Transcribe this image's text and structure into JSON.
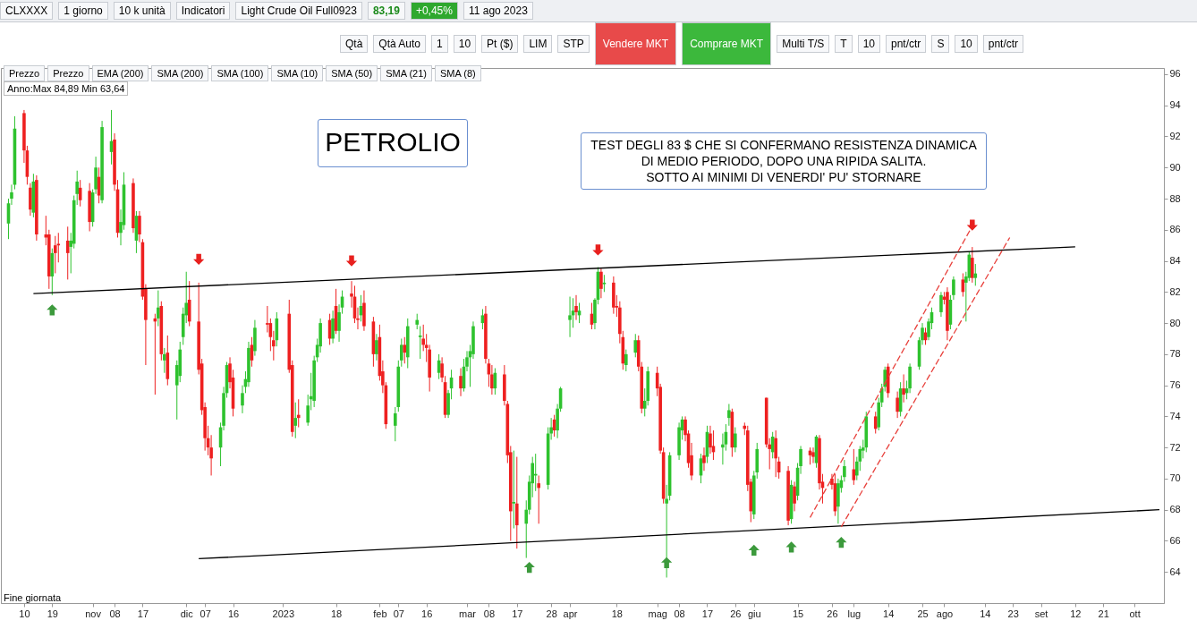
{
  "chart_data": {
    "type": "candlestick",
    "title": "PETROLIO",
    "annotations": [
      "TEST DEGLI 83 $ CHE SI CONFERMANO RESISTENZA DINAMICA\nDI MEDIO PERIODO, DOPO UNA RIPIDA SALITA.\nSOTTO AI MINIMI DI VENERDI' PU' STORNARE",
      "Anno:Max 84,89 Min 63,64",
      "Fine giornata",
      "CLXXXX",
      "1 giorno",
      "10 k unità",
      "Indicatori",
      "Light Crude Oil Full0923",
      "83,19",
      "+0,45%",
      "11 ago 2023",
      "Qtà",
      "Qtà Auto",
      "1",
      "10",
      "Pt ($)",
      "LIM",
      "STP",
      "Vendere MKT",
      "Comprare MKT",
      "Multi T/S",
      "T",
      "10",
      "pnt/ctr",
      "S",
      "10",
      "pnt/ctr",
      "Prezzo",
      "Prezzo",
      "EMA (200)",
      "SMA (200)",
      "SMA (100)",
      "SMA (10)",
      "SMA (50)",
      "SMA (21)",
      "SMA (8)"
    ],
    "colors": [
      "#2ec22e",
      "#2ec22e",
      "#2ec22e",
      "#ee2020",
      "#ee2020",
      "#ee2020",
      "#2ec22e",
      "#ee2020",
      "#ee2020",
      "#ee2020",
      "#2ec22e",
      "#ee2020",
      "#ee2020",
      "#ee2020",
      "#2ec22e",
      "#2ec22e",
      "#2ec22e",
      "#ee2020",
      "#ee2020",
      "#2ec22e",
      "#2ec22e",
      "#ee2020",
      "#2ec22e",
      "#2ec22e",
      "#ee2020",
      "#ee2020",
      "#2ec22e",
      "#2ec22e",
      "#ee2020",
      "#2ec22e",
      "#ee2020",
      "#ee2020",
      "#ee2020",
      "#ee2020",
      "#2ec22e",
      "#ee2020",
      "#2ec22e",
      "#ee2020",
      "#2ec22e",
      "#2ec22e",
      "#2ec22e",
      "#2ec22e",
      "#ee2020",
      "#ee2020",
      "#ee2020",
      "#ee2020",
      "#ee2020",
      "#ee2020",
      "#2ec22e",
      "#2ec22e",
      "#2ec22e",
      "#ee2020",
      "#ee2020",
      "#2ec22e",
      "#2ec22e",
      "#2ec22e",
      "#ee2020",
      "#2ec22e",
      "#ee2020",
      "#ee2020",
      "#ee2020",
      "#2ec22e",
      "#ee2020",
      "#ee2020",
      "#2ec22e",
      "#ee2020",
      "#2ec22e",
      "#2ec22e",
      "#2ec22e",
      "#2ec22e",
      "#2ec22e",
      "#ee2020",
      "#2ec22e",
      "#ee2020",
      "#2ec22e",
      "#2ec22e",
      "#ee2020",
      "#ee2020",
      "#ee2020",
      "#2ec22e",
      "#ee2020",
      "#ee2020",
      "#2ec22e",
      "#ee2020",
      "#ee2020",
      "#ee2020",
      "#2ec22e",
      "#2ec22e",
      "#2ec22e",
      "#ee2020",
      "#2ec22e",
      "#2ec22e",
      "#2ec22e",
      "#ee2020",
      "#ee2020",
      "#ee2020",
      "#2ec22e",
      "#ee2020",
      "#ee2020",
      "#2ec22e",
      "#2ec22e",
      "#ee2020",
      "#2ec22e",
      "#2ec22e",
      "#2ec22e",
      "#2ec22e",
      "#2ec22e",
      "#ee2020",
      "#ee2020",
      "#ee2020",
      "#2ec22e",
      "#ee2020",
      "#ee2020",
      "#ee2020",
      "#2ec22e",
      "#ee2020",
      "#2ec22e",
      "#2ec22e",
      "#2ec22e",
      "#2ec22e",
      "#ee2020",
      "#2ec22e",
      "#2ec22e",
      "#ee2020",
      "#2ec22e",
      "#2ec22e",
      "#2ec22e",
      "#2ec22e",
      "#ee2020",
      "#2ec22e",
      "#ee2020",
      "#2ec22e",
      "#2ec22e",
      "#ee2020",
      "#2ec22e",
      "#ee2020",
      "#ee2020",
      "#ee2020",
      "#ee2020",
      "#2ec22e",
      "#2ec22e",
      "#ee2020",
      "#ee2020",
      "#2ec22e",
      "#2ec22e",
      "#ee2020",
      "#ee2020",
      "#ee2020",
      "#2ec22e",
      "#2ec22e",
      "#2ec22e",
      "#2ec22e",
      "#ee2020",
      "#ee2020",
      "#ee2020",
      "#2ec22e",
      "#ee2020",
      "#2ec22e",
      "#ee2020",
      "#ee2020",
      "#2ec22e",
      "#2ec22e",
      "#2ec22e",
      "#ee2020",
      "#2ec22e",
      "#ee2020",
      "#ee2020",
      "#ee2020",
      "#2ec22e",
      "#2ec22e",
      "#ee2020",
      "#ee2020",
      "#2ec22e",
      "#ee2020",
      "#ee2020",
      "#ee2020",
      "#2ec22e",
      "#ee2020",
      "#2ec22e",
      "#2ec22e",
      "#ee2020",
      "#ee2020",
      "#2ec22e",
      "#ee2020",
      "#ee2020",
      "#ee2020",
      "#ee2020",
      "#2ec22e",
      "#2ec22e",
      "#2ec22e",
      "#ee2020",
      "#2ec22e",
      "#2ec22e",
      "#2ec22e",
      "#2ec22e",
      "#ee2020",
      "#2ec22e",
      "#2ec22e",
      "#2ec22e",
      "#ee2020",
      "#ee2020",
      "#2ec22e",
      "#ee2020",
      "#2ec22e",
      "#2ec22e",
      "#2ec22e",
      "#2ec22e",
      "#ee2020",
      "#2ec22e",
      "#2ec22e",
      "#2ec22e",
      "#ee2020",
      "#ee2020",
      "#2ec22e",
      "#2ec22e",
      "#ee2020",
      "#2ec22e",
      "#2ec22e",
      "#ee2020",
      "#2ec22e"
    ],
    "x": [
      "2022-10-05",
      "2022-10-06",
      "2022-10-07",
      "2022-10-10",
      "2022-10-11",
      "2022-10-12",
      "2022-10-13",
      "2022-10-14",
      "2022-10-17",
      "2022-10-18",
      "2022-10-19",
      "2022-10-20",
      "2022-10-21",
      "2022-10-24",
      "2022-10-25",
      "2022-10-26",
      "2022-10-27",
      "2022-10-28",
      "2022-10-31",
      "2022-11-01",
      "2022-11-02",
      "2022-11-03",
      "2022-11-04",
      "2022-11-07",
      "2022-11-08",
      "2022-11-09",
      "2022-11-10",
      "2022-11-11",
      "2022-11-14",
      "2022-11-15",
      "2022-11-16",
      "2022-11-17",
      "2022-11-18",
      "2022-11-21",
      "2022-11-22",
      "2022-11-23",
      "2022-11-24",
      "2022-11-25",
      "2022-11-28",
      "2022-11-29",
      "2022-11-30",
      "2022-12-01",
      "2022-12-02",
      "2022-12-05",
      "2022-12-06",
      "2022-12-07",
      "2022-12-08",
      "2022-12-09",
      "2022-12-12",
      "2022-12-13",
      "2022-12-14",
      "2022-12-15",
      "2022-12-16",
      "2022-12-19",
      "2022-12-20",
      "2022-12-21",
      "2022-12-22",
      "2022-12-23",
      "2022-12-27",
      "2022-12-28",
      "2022-12-29",
      "2022-12-30",
      "2023-01-03",
      "2023-01-04",
      "2023-01-05",
      "2023-01-06",
      "2023-01-09",
      "2023-01-10",
      "2023-01-11",
      "2023-01-12",
      "2023-01-13",
      "2023-01-16",
      "2023-01-17",
      "2023-01-18",
      "2023-01-19",
      "2023-01-20",
      "2023-01-23",
      "2023-01-24",
      "2023-01-25",
      "2023-01-26",
      "2023-01-27",
      "2023-01-30",
      "2023-01-31",
      "2023-02-01",
      "2023-02-02",
      "2023-02-03",
      "2023-02-06",
      "2023-02-07",
      "2023-02-08",
      "2023-02-09",
      "2023-02-10",
      "2023-02-13",
      "2023-02-14",
      "2023-02-15",
      "2023-02-16",
      "2023-02-17",
      "2023-02-20",
      "2023-02-21",
      "2023-02-22",
      "2023-02-23",
      "2023-02-24",
      "2023-02-27",
      "2023-02-28",
      "2023-03-01",
      "2023-03-02",
      "2023-03-03",
      "2023-03-06",
      "2023-03-07",
      "2023-03-08",
      "2023-03-09",
      "2023-03-10",
      "2023-03-13",
      "2023-03-14",
      "2023-03-15",
      "2023-03-16",
      "2023-03-17",
      "2023-03-20",
      "2023-03-21",
      "2023-03-22",
      "2023-03-23",
      "2023-03-24",
      "2023-03-27",
      "2023-03-28",
      "2023-03-29",
      "2023-03-30",
      "2023-03-31",
      "2023-04-03",
      "2023-04-04",
      "2023-04-05",
      "2023-04-06",
      "2023-04-10",
      "2023-04-11",
      "2023-04-12",
      "2023-04-13",
      "2023-04-14",
      "2023-04-17",
      "2023-04-18",
      "2023-04-19",
      "2023-04-20",
      "2023-04-21",
      "2023-04-24",
      "2023-04-25",
      "2023-04-26",
      "2023-04-27",
      "2023-04-28",
      "2023-05-01",
      "2023-05-02",
      "2023-05-03",
      "2023-05-04",
      "2023-05-05",
      "2023-05-08",
      "2023-05-09",
      "2023-05-10",
      "2023-05-11",
      "2023-05-12",
      "2023-05-15",
      "2023-05-16",
      "2023-05-17",
      "2023-05-18",
      "2023-05-19",
      "2023-05-22",
      "2023-05-23",
      "2023-05-24",
      "2023-05-25",
      "2023-05-26",
      "2023-05-29",
      "2023-05-30",
      "2023-05-31",
      "2023-06-01",
      "2023-06-02",
      "2023-06-05",
      "2023-06-06",
      "2023-06-07",
      "2023-06-08",
      "2023-06-09",
      "2023-06-12",
      "2023-06-13",
      "2023-06-14",
      "2023-06-15",
      "2023-06-16",
      "2023-06-19",
      "2023-06-20",
      "2023-06-21",
      "2023-06-22",
      "2023-06-23",
      "2023-06-26",
      "2023-06-27",
      "2023-06-28",
      "2023-06-29",
      "2023-06-30",
      "2023-07-03",
      "2023-07-04",
      "2023-07-05",
      "2023-07-06",
      "2023-07-07",
      "2023-07-10",
      "2023-07-11",
      "2023-07-12",
      "2023-07-13",
      "2023-07-14",
      "2023-07-17",
      "2023-07-18",
      "2023-07-19",
      "2023-07-20",
      "2023-07-21",
      "2023-07-24",
      "2023-07-25",
      "2023-07-26",
      "2023-07-27",
      "2023-07-28",
      "2023-07-31",
      "2023-08-01",
      "2023-08-02",
      "2023-08-03",
      "2023-08-04",
      "2023-08-07",
      "2023-08-08",
      "2023-08-09",
      "2023-08-10",
      "2023-08-11"
    ],
    "ohlc": [
      [
        86.4,
        88.0,
        85.4,
        87.7
      ],
      [
        88.0,
        88.9,
        87.6,
        88.4
      ],
      [
        88.9,
        93.3,
        88.6,
        92.5
      ],
      [
        93.5,
        93.7,
        90.3,
        91.1
      ],
      [
        91.1,
        91.4,
        88.9,
        89.4
      ],
      [
        88.7,
        89.0,
        86.9,
        87.3
      ],
      [
        87.1,
        89.6,
        86.8,
        89.1
      ],
      [
        89.2,
        89.5,
        85.3,
        85.7
      ],
      [
        85.7,
        86.9,
        85.0,
        85.5
      ],
      [
        85.7,
        86.0,
        82.2,
        83.0
      ],
      [
        83.0,
        84.8,
        81.8,
        84.5
      ],
      [
        85.0,
        85.6,
        83.2,
        84.5
      ],
      [
        85.1,
        85.8,
        83.9,
        85.0
      ],
      [
        85.3,
        86.2,
        82.8,
        84.5
      ],
      [
        84.9,
        85.8,
        83.2,
        85.3
      ],
      [
        85.1,
        88.2,
        84.8,
        87.9
      ],
      [
        88.3,
        89.8,
        87.6,
        89.1
      ],
      [
        88.7,
        89.2,
        87.5,
        87.9
      ],
      [
        88.5,
        89.0,
        85.9,
        86.5
      ],
      [
        86.5,
        88.6,
        86.2,
        88.4
      ],
      [
        88.6,
        90.7,
        88.3,
        90.0
      ],
      [
        89.4,
        90.0,
        87.7,
        88.2
      ],
      [
        87.9,
        93.0,
        87.7,
        92.6
      ],
      [
        91.0,
        93.7,
        90.2,
        91.7
      ],
      [
        91.8,
        92.2,
        88.5,
        88.9
      ],
      [
        88.6,
        89.2,
        85.5,
        85.8
      ],
      [
        85.8,
        87.3,
        85.0,
        86.5
      ],
      [
        86.3,
        89.7,
        86.0,
        88.9
      ],
      [
        89.0,
        89.3,
        85.8,
        86.1
      ],
      [
        85.3,
        87.2,
        84.5,
        86.9
      ],
      [
        86.9,
        87.2,
        85.2,
        85.7
      ],
      [
        85.2,
        85.4,
        81.5,
        81.7
      ],
      [
        82.2,
        82.5,
        77.3,
        80.2
      ],
      [
        80.3,
        80.6,
        75.4,
        80.1
      ],
      [
        80.3,
        82.1,
        79.8,
        81.0
      ],
      [
        81.1,
        81.4,
        77.6,
        78.0
      ],
      [
        77.6,
        78.4,
        76.8,
        78.0
      ],
      [
        78.1,
        79.2,
        76.0,
        76.4
      ],
      [
        76.0,
        77.6,
        73.8,
        77.3
      ],
      [
        76.6,
        78.8,
        76.2,
        78.3
      ],
      [
        79.1,
        81.0,
        78.6,
        80.6
      ],
      [
        80.5,
        83.3,
        80.0,
        81.3
      ],
      [
        81.5,
        82.7,
        79.8,
        80.1
      ],
      [
        80.1,
        82.6,
        76.7,
        77.0
      ],
      [
        77.4,
        77.7,
        74.1,
        74.4
      ],
      [
        74.6,
        74.9,
        71.8,
        72.6
      ],
      [
        72.6,
        73.4,
        71.5,
        72.0
      ],
      [
        72.0,
        72.8,
        70.2,
        71.3
      ],
      [
        72.0,
        73.6,
        70.8,
        73.3
      ],
      [
        73.4,
        75.9,
        73.1,
        75.5
      ],
      [
        75.5,
        77.5,
        75.2,
        77.3
      ],
      [
        77.4,
        77.8,
        75.8,
        76.2
      ],
      [
        76.5,
        77.0,
        74.0,
        74.5
      ],
      [
        74.7,
        76.0,
        74.2,
        75.5
      ],
      [
        75.9,
        76.9,
        75.5,
        76.4
      ],
      [
        76.2,
        78.8,
        75.9,
        78.4
      ],
      [
        78.6,
        79.1,
        77.2,
        77.6
      ],
      [
        78.2,
        80.2,
        77.9,
        79.7
      ],
      [
        80.0,
        81.1,
        79.4,
        79.9
      ],
      [
        80.0,
        80.3,
        78.2,
        79.1
      ],
      [
        78.9,
        79.5,
        77.6,
        78.5
      ],
      [
        78.9,
        80.7,
        78.5,
        80.3
      ],
      [
        80.6,
        81.5,
        76.8,
        77.0
      ],
      [
        77.3,
        77.6,
        72.7,
        73.0
      ],
      [
        73.4,
        74.9,
        72.6,
        73.9
      ],
      [
        74.1,
        75.1,
        73.3,
        73.9
      ],
      [
        73.6,
        75.4,
        73.4,
        74.7
      ],
      [
        75.1,
        76.8,
        74.4,
        75.3
      ],
      [
        75.0,
        77.9,
        74.6,
        77.6
      ],
      [
        77.8,
        79.0,
        77.5,
        78.6
      ],
      [
        78.5,
        80.3,
        78.1,
        80.0
      ],
      [
        80.2,
        80.6,
        78.6,
        79.0
      ],
      [
        79.0,
        80.8,
        78.7,
        80.3
      ],
      [
        81.1,
        82.2,
        79.3,
        79.5
      ],
      [
        79.5,
        81.2,
        78.8,
        80.7
      ],
      [
        81.0,
        82.1,
        80.6,
        81.7
      ],
      [
        81.9,
        82.7,
        81.0,
        81.7
      ],
      [
        81.7,
        82.4,
        80.0,
        80.3
      ],
      [
        80.3,
        81.0,
        79.6,
        80.2
      ],
      [
        80.5,
        81.8,
        80.1,
        81.1
      ],
      [
        81.3,
        82.1,
        79.5,
        79.8
      ],
      [
        80.1,
        80.4,
        77.2,
        78.0
      ],
      [
        78.0,
        79.3,
        77.6,
        78.9
      ],
      [
        79.1,
        79.9,
        76.3,
        76.6
      ],
      [
        76.9,
        77.6,
        75.5,
        76.0
      ],
      [
        76.0,
        76.2,
        73.2,
        73.5
      ],
      [
        73.4,
        74.6,
        72.4,
        74.2
      ],
      [
        74.6,
        77.6,
        74.3,
        77.2
      ],
      [
        77.6,
        79.0,
        77.2,
        78.6
      ],
      [
        78.6,
        79.1,
        77.4,
        78.1
      ],
      [
        77.8,
        80.3,
        77.1,
        79.8
      ],
      [
        79.9,
        80.6,
        79.6,
        80.2
      ],
      [
        79.1,
        79.8,
        77.7,
        79.2
      ],
      [
        79.0,
        79.9,
        78.2,
        78.6
      ],
      [
        78.6,
        79.3,
        77.5,
        78.4
      ],
      [
        78.3,
        78.6,
        75.6,
        76.5
      ],
      [
        76.8,
        78.0,
        76.4,
        77.6
      ],
      [
        77.4,
        77.8,
        76.2,
        76.5
      ],
      [
        76.2,
        76.6,
        73.9,
        74.1
      ],
      [
        74.1,
        75.7,
        73.9,
        75.5
      ],
      [
        75.8,
        77.0,
        75.1,
        76.5
      ],
      [
        76.6,
        77.1,
        75.3,
        75.8
      ],
      [
        75.8,
        77.7,
        75.6,
        77.2
      ],
      [
        77.2,
        78.2,
        76.9,
        77.8
      ],
      [
        77.8,
        78.6,
        75.9,
        78.2
      ],
      [
        78.0,
        80.1,
        77.7,
        79.8
      ],
      [
        80.0,
        80.9,
        79.6,
        80.5
      ],
      [
        80.6,
        81.1,
        77.4,
        77.7
      ],
      [
        77.4,
        77.7,
        75.9,
        76.7
      ],
      [
        76.7,
        77.3,
        75.4,
        75.8
      ],
      [
        75.8,
        77.1,
        75.4,
        76.8
      ],
      [
        76.7,
        77.3,
        74.7,
        75.0
      ],
      [
        74.8,
        75.0,
        71.0,
        71.5
      ],
      [
        71.7,
        72.1,
        66.0,
        67.9
      ],
      [
        68.4,
        71.8,
        66.8,
        68.5
      ],
      [
        68.4,
        71.4,
        65.5,
        67.0
      ],
      [
        67.1,
        68.6,
        64.9,
        68.0
      ],
      [
        68.0,
        70.2,
        67.7,
        69.8
      ],
      [
        69.7,
        71.4,
        68.8,
        71.0
      ],
      [
        70.2,
        71.6,
        69.2,
        70.3
      ],
      [
        69.7,
        70.2,
        67.1,
        69.4
      ],
      [
        69.6,
        73.3,
        69.3,
        72.9
      ],
      [
        72.9,
        73.9,
        72.5,
        73.3
      ],
      [
        73.8,
        74.1,
        72.7,
        73.1
      ],
      [
        73.1,
        74.8,
        72.6,
        74.5
      ],
      [
        74.5,
        75.9,
        74.3,
        75.8
      ],
      [
        80.2,
        81.7,
        79.1,
        80.5
      ],
      [
        80.5,
        81.6,
        79.7,
        80.8
      ],
      [
        81.1,
        81.8,
        80.2,
        80.7
      ],
      [
        80.5,
        81.3,
        80.0,
        80.8
      ],
      [
        80.6,
        81.3,
        79.6,
        79.9
      ],
      [
        80.0,
        81.6,
        79.6,
        81.5
      ],
      [
        81.5,
        83.6,
        81.2,
        83.3
      ],
      [
        83.3,
        83.5,
        81.6,
        82.2
      ],
      [
        82.5,
        83.1,
        82.0,
        82.6
      ],
      [
        82.6,
        83.0,
        80.6,
        81.0
      ],
      [
        81.1,
        81.8,
        80.4,
        81.0
      ],
      [
        81.0,
        81.4,
        78.7,
        79.3
      ],
      [
        79.1,
        79.5,
        77.0,
        77.4
      ],
      [
        77.3,
        78.3,
        76.9,
        78.0
      ],
      [
        78.1,
        79.3,
        77.8,
        78.9
      ],
      [
        78.9,
        79.2,
        76.9,
        77.2
      ],
      [
        77.2,
        77.5,
        74.2,
        74.5
      ],
      [
        74.5,
        75.8,
        74.0,
        75.0
      ],
      [
        75.0,
        77.2,
        74.7,
        76.9
      ],
      [
        76.8,
        77.2,
        75.3,
        75.8
      ],
      [
        75.9,
        76.1,
        71.6,
        71.8
      ],
      [
        71.7,
        72.0,
        68.4,
        68.7
      ],
      [
        68.4,
        69.6,
        63.64,
        68.7
      ],
      [
        68.9,
        71.7,
        68.6,
        71.5
      ],
      [
        71.5,
        73.6,
        71.2,
        73.3
      ],
      [
        73.1,
        74.0,
        72.5,
        73.8
      ],
      [
        73.8,
        74.0,
        72.4,
        72.8
      ],
      [
        72.9,
        73.1,
        70.7,
        71.0
      ],
      [
        71.5,
        72.3,
        69.9,
        70.2
      ],
      [
        70.2,
        71.6,
        69.7,
        71.3
      ],
      [
        71.5,
        72.0,
        70.5,
        71.0
      ],
      [
        71.4,
        73.4,
        71.0,
        73.0
      ],
      [
        72.9,
        73.4,
        71.6,
        72.0
      ],
      [
        72.1,
        73.1,
        71.2,
        71.7
      ],
      [
        72.0,
        72.9,
        70.9,
        72.2
      ],
      [
        72.2,
        73.5,
        71.8,
        73.0
      ],
      [
        73.9,
        74.8,
        73.4,
        74.4
      ],
      [
        74.3,
        74.5,
        71.4,
        72.0
      ],
      [
        72.0,
        73.3,
        71.7,
        72.9
      ],
      [
        73.4,
        73.6,
        72.8,
        73.2
      ],
      [
        73.1,
        73.4,
        69.2,
        69.6
      ],
      [
        69.8,
        70.0,
        67.2,
        67.9
      ],
      [
        67.7,
        70.5,
        67.4,
        70.2
      ],
      [
        70.4,
        72.3,
        70.0,
        71.9
      ],
      [
        75.2,
        75.2,
        72.0,
        72.2
      ],
      [
        72.2,
        72.6,
        70.6,
        71.9
      ],
      [
        71.7,
        73.0,
        71.3,
        72.7
      ],
      [
        72.6,
        73.1,
        70.1,
        71.3
      ],
      [
        71.1,
        71.4,
        70.0,
        70.4
      ],
      [
        70.5,
        70.8,
        67.0,
        67.3
      ],
      [
        67.4,
        69.9,
        67.1,
        69.6
      ],
      [
        69.5,
        69.8,
        67.9,
        68.4
      ],
      [
        68.9,
        71.0,
        68.6,
        70.7
      ],
      [
        70.8,
        72.1,
        70.3,
        71.9
      ],
      [
        71.8,
        72.0,
        70.9,
        71.5
      ],
      [
        71.7,
        72.0,
        71.0,
        71.4
      ],
      [
        71.0,
        72.8,
        70.7,
        72.7
      ],
      [
        72.6,
        72.8,
        69.3,
        69.7
      ],
      [
        69.8,
        70.3,
        68.4,
        69.4
      ],
      [
        70.0,
        70.3,
        69.3,
        69.6
      ],
      [
        69.7,
        70.3,
        67.6,
        67.9
      ],
      [
        68.2,
        70.0,
        67.1,
        69.7
      ],
      [
        69.4,
        70.2,
        69.1,
        69.9
      ],
      [
        70.1,
        71.2,
        69.8,
        70.8
      ],
      [
        70.6,
        71.9,
        69.6,
        69.9
      ],
      [
        70.2,
        71.4,
        69.9,
        71.1
      ],
      [
        71.1,
        72.1,
        70.5,
        71.9
      ],
      [
        71.8,
        72.5,
        71.3,
        72.0
      ],
      [
        72.0,
        74.3,
        71.7,
        74.0
      ],
      [
        74.0,
        74.3,
        72.9,
        73.2
      ],
      [
        73.3,
        75.2,
        73.1,
        74.9
      ],
      [
        74.9,
        76.1,
        74.6,
        75.8
      ],
      [
        75.9,
        77.2,
        75.6,
        77.0
      ],
      [
        77.2,
        77.4,
        75.2,
        75.5
      ],
      [
        75.2,
        75.6,
        73.9,
        74.3
      ],
      [
        74.3,
        76.2,
        74.0,
        75.8
      ],
      [
        75.8,
        76.7,
        74.9,
        75.4
      ],
      [
        75.5,
        76.3,
        75.1,
        75.8
      ],
      [
        75.8,
        77.4,
        75.5,
        77.2
      ],
      [
        77.2,
        79.1,
        77.0,
        78.9
      ],
      [
        78.9,
        80.0,
        78.6,
        79.7
      ],
      [
        79.4,
        79.7,
        78.6,
        78.9
      ],
      [
        79.1,
        80.3,
        78.9,
        80.1
      ],
      [
        80.0,
        81.0,
        79.6,
        80.7
      ],
      [
        80.7,
        82.0,
        80.4,
        81.8
      ],
      [
        81.7,
        82.0,
        81.2,
        81.5
      ],
      [
        82.0,
        82.3,
        78.9,
        79.5
      ],
      [
        79.9,
        81.8,
        79.6,
        81.5
      ],
      [
        81.8,
        83.0,
        81.5,
        82.8
      ],
      [
        82.8,
        83.2,
        81.7,
        82.0
      ],
      [
        82.6,
        83.3,
        80.1,
        83.0
      ],
      [
        82.9,
        84.6,
        82.7,
        84.4
      ],
      [
        84.2,
        84.89,
        82.6,
        82.9
      ],
      [
        82.9,
        83.8,
        82.4,
        83.19
      ]
    ],
    "series": [
      {
        "type": "line",
        "color": "#000000",
        "line_style": "solid",
        "x": [
          "2022-10-13",
          "2023-09-12"
        ],
        "values": [
          81.9,
          84.9
        ]
      },
      {
        "type": "line",
        "color": "#000000",
        "line_style": "solid",
        "x": [
          "2022-12-05",
          "2023-10-09"
        ],
        "values": [
          64.85,
          68.0
        ]
      },
      {
        "type": "line",
        "color": "#e8413c",
        "line_style": "dashed",
        "x": [
          "2023-06-19",
          "2023-08-11"
        ],
        "values": [
          67.5,
          86.6
        ]
      },
      {
        "type": "line",
        "color": "#e8413c",
        "line_style": "dashed",
        "x": [
          "2023-06-29",
          "2023-08-22"
        ],
        "values": [
          66.9,
          85.5
        ]
      },
      {
        "type": "scatter",
        "color": "#e8201e",
        "marker": "triangle",
        "x": [
          "2022-12-05",
          "2023-01-23",
          "2023-04-12",
          "2023-08-10"
        ],
        "values": [
          84.1,
          84.0,
          84.7,
          86.3
        ]
      },
      {
        "type": "scatter",
        "color": "#3c9a3c",
        "marker": "triangle",
        "x": [
          "2022-10-19",
          "2023-03-21",
          "2023-05-04",
          "2023-06-01",
          "2023-06-13",
          "2023-06-29"
        ],
        "values": [
          80.85,
          64.3,
          64.6,
          65.4,
          65.6,
          65.9
        ]
      }
    ],
    "xlim": [
      "2022-10-04",
      "2023-10-09"
    ],
    "xticks": [
      {
        "value": "2022-10-10",
        "label": "10"
      },
      {
        "value": "2022-10-19",
        "label": "19"
      },
      {
        "value": "2022-11-01",
        "label": "nov"
      },
      {
        "value": "2022-11-08",
        "label": "08"
      },
      {
        "value": "2022-11-17",
        "label": "17"
      },
      {
        "value": "2022-12-01",
        "label": "dic"
      },
      {
        "value": "2022-12-07",
        "label": "07"
      },
      {
        "value": "2022-12-16",
        "label": "16"
      },
      {
        "value": "2023-01-01",
        "label": "2023"
      },
      {
        "value": "2023-01-18",
        "label": "18"
      },
      {
        "value": "2023-02-01",
        "label": "feb"
      },
      {
        "value": "2023-02-07",
        "label": "07"
      },
      {
        "value": "2023-02-16",
        "label": "16"
      },
      {
        "value": "2023-03-01",
        "label": "mar"
      },
      {
        "value": "2023-03-08",
        "label": "08"
      },
      {
        "value": "2023-03-17",
        "label": "17"
      },
      {
        "value": "2023-03-28",
        "label": "28"
      },
      {
        "value": "2023-04-03",
        "label": "apr"
      },
      {
        "value": "2023-04-18",
        "label": "18"
      },
      {
        "value": "2023-05-01",
        "label": "mag"
      },
      {
        "value": "2023-05-08",
        "label": "08"
      },
      {
        "value": "2023-05-17",
        "label": "17"
      },
      {
        "value": "2023-05-26",
        "label": "26"
      },
      {
        "value": "2023-06-01",
        "label": "giu"
      },
      {
        "value": "2023-06-15",
        "label": "15"
      },
      {
        "value": "2023-06-26",
        "label": "26"
      },
      {
        "value": "2023-07-03",
        "label": "lug"
      },
      {
        "value": "2023-07-14",
        "label": "14"
      },
      {
        "value": "2023-07-25",
        "label": "25"
      },
      {
        "value": "2023-08-01",
        "label": "ago"
      },
      {
        "value": "2023-08-14",
        "label": "14"
      },
      {
        "value": "2023-08-23",
        "label": "23"
      },
      {
        "value": "2023-09-01",
        "label": "set"
      },
      {
        "value": "2023-09-12",
        "label": "12"
      },
      {
        "value": "2023-09-21",
        "label": "21"
      },
      {
        "value": "2023-10-01",
        "label": "ott"
      }
    ],
    "ylim": [
      62,
      96.4
    ],
    "yticks": [
      64,
      66,
      68,
      70,
      72,
      74,
      76,
      78,
      80,
      82,
      84,
      86,
      88,
      90,
      92,
      94,
      96
    ]
  }
}
